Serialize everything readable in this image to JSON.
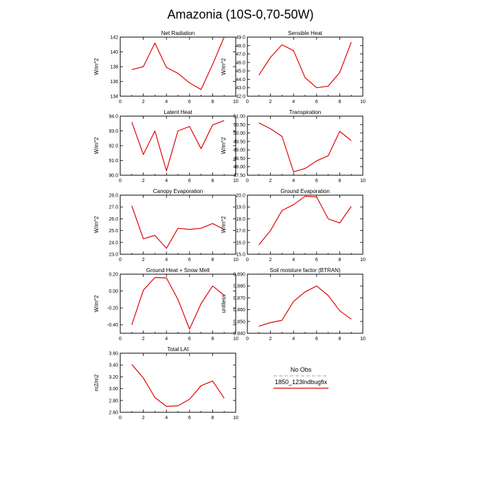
{
  "figure": {
    "title": "Amazonia (10S-0,70-50W)"
  },
  "legend": {
    "entries": [
      {
        "label": "No Obs",
        "color": "#aab0d8",
        "dashed": true
      },
      {
        "label": "1850_123lndbugfix",
        "color": "#e00000",
        "dashed": false
      }
    ]
  },
  "colors": {
    "series": "#e00000",
    "axes": "#000000",
    "background": "#ffffff"
  },
  "chart_data": [
    {
      "type": "line",
      "title": "Net Radiation",
      "ylabel": "W/m^2",
      "xlim": [
        0,
        10
      ],
      "ylim": [
        134,
        142
      ],
      "xticks": [
        "0",
        "2",
        "4",
        "6",
        "8",
        "10"
      ],
      "yticks": [
        "134",
        "136",
        "138",
        "140",
        "142"
      ],
      "series": [
        {
          "x": [
            1,
            2,
            3,
            4,
            5,
            6,
            7,
            8,
            9
          ],
          "values": [
            137.6,
            138.0,
            141.2,
            137.9,
            137.1,
            135.8,
            134.9,
            138.3,
            142.0
          ]
        }
      ]
    },
    {
      "type": "line",
      "title": "Sensible Heat",
      "ylabel": "W/m^2",
      "xlim": [
        0,
        10
      ],
      "ylim": [
        42,
        49
      ],
      "xticks": [
        "0",
        "2",
        "4",
        "6",
        "8",
        "10"
      ],
      "yticks": [
        "42.0",
        "43.0",
        "44.0",
        "45.0",
        "46.0",
        "47.0",
        "48.0",
        "49.0"
      ],
      "series": [
        {
          "x": [
            1,
            2,
            3,
            4,
            5,
            6,
            7,
            8,
            9
          ],
          "values": [
            44.5,
            46.6,
            48.1,
            47.4,
            44.2,
            43.0,
            43.2,
            44.8,
            48.4
          ]
        }
      ]
    },
    {
      "type": "line",
      "title": "Latent Heat",
      "ylabel": "W/m^2",
      "xlim": [
        0,
        10
      ],
      "ylim": [
        90,
        94
      ],
      "xticks": [
        "0",
        "2",
        "4",
        "6",
        "8",
        "10"
      ],
      "yticks": [
        "90.0",
        "91.0",
        "92.0",
        "93.0",
        "94.0"
      ],
      "series": [
        {
          "x": [
            1,
            2,
            3,
            4,
            5,
            6,
            7,
            8,
            9
          ],
          "values": [
            93.6,
            91.4,
            93.0,
            90.3,
            93.0,
            93.3,
            91.8,
            93.4,
            93.7
          ]
        }
      ]
    },
    {
      "type": "line",
      "title": "Transpiration",
      "ylabel": "W/m^2",
      "xlim": [
        0,
        10
      ],
      "ylim": [
        47.5,
        51
      ],
      "xticks": [
        "0",
        "2",
        "4",
        "6",
        "8",
        "10"
      ],
      "yticks": [
        "47.50",
        "48.00",
        "48.50",
        "49.00",
        "49.50",
        "50.00",
        "50.50",
        "51.00"
      ],
      "series": [
        {
          "x": [
            1,
            2,
            3,
            4,
            5,
            6,
            7,
            8,
            9
          ],
          "values": [
            50.6,
            50.25,
            49.8,
            47.7,
            47.9,
            48.35,
            48.65,
            50.1,
            49.55
          ]
        }
      ]
    },
    {
      "type": "line",
      "title": "Canopy Evaporation",
      "ylabel": "W/m^2",
      "xlim": [
        0,
        10
      ],
      "ylim": [
        23,
        28
      ],
      "xticks": [
        "0",
        "2",
        "4",
        "6",
        "8",
        "10"
      ],
      "yticks": [
        "23.0",
        "24.0",
        "25.0",
        "26.0",
        "27.0",
        "28.0"
      ],
      "series": [
        {
          "x": [
            1,
            2,
            3,
            4,
            5,
            6,
            7,
            8,
            9
          ],
          "values": [
            27.1,
            24.3,
            24.6,
            23.5,
            25.2,
            25.1,
            25.2,
            25.6,
            25.1
          ]
        }
      ]
    },
    {
      "type": "line",
      "title": "Ground Evaporation",
      "ylabel": "W/m^2",
      "xlim": [
        0,
        10
      ],
      "ylim": [
        15,
        20
      ],
      "xticks": [
        "0",
        "2",
        "4",
        "6",
        "8",
        "10"
      ],
      "yticks": [
        "15.0",
        "16.0",
        "17.0",
        "18.0",
        "19.0",
        "20.0"
      ],
      "series": [
        {
          "x": [
            1,
            2,
            3,
            4,
            5,
            6,
            7,
            8,
            9
          ],
          "values": [
            15.8,
            17.0,
            18.7,
            19.2,
            19.9,
            19.85,
            18.0,
            17.65,
            19.05
          ]
        }
      ]
    },
    {
      "type": "line",
      "title": "Ground Heat + Snow Melt",
      "ylabel": "W/m^2",
      "xlim": [
        0,
        10
      ],
      "ylim": [
        -0.5,
        0.2
      ],
      "xticks": [
        "0",
        "2",
        "4",
        "6",
        "8",
        "10"
      ],
      "yticks": [
        "-0.40",
        "-0.20",
        "0.00",
        "0.20"
      ],
      "series": [
        {
          "x": [
            1,
            2,
            3,
            4,
            5,
            6,
            7,
            8,
            9
          ],
          "values": [
            -0.4,
            0.01,
            0.16,
            0.155,
            -0.1,
            -0.45,
            -0.15,
            0.06,
            -0.05
          ]
        }
      ]
    },
    {
      "type": "line",
      "title": "Soil moisture factor (BTRAN)",
      "ylabel": "unitless",
      "xlim": [
        0,
        10
      ],
      "ylim": [
        0.84,
        0.89
      ],
      "xticks": [
        "0",
        "2",
        "4",
        "6",
        "8",
        "10"
      ],
      "yticks": [
        "0.840",
        "0.850",
        "0.860",
        "0.870",
        "0.880",
        "0.890"
      ],
      "series": [
        {
          "x": [
            1,
            2,
            3,
            4,
            5,
            6,
            7,
            8,
            9
          ],
          "values": [
            0.846,
            0.849,
            0.851,
            0.867,
            0.875,
            0.88,
            0.872,
            0.859,
            0.852
          ]
        }
      ]
    },
    {
      "type": "line",
      "title": "Total LAI",
      "ylabel": "m2/m2",
      "xlim": [
        0,
        10
      ],
      "ylim": [
        2.6,
        3.6
      ],
      "xticks": [
        "0",
        "2",
        "4",
        "6",
        "8",
        "10"
      ],
      "yticks": [
        "2.60",
        "2.80",
        "3.00",
        "3.20",
        "3.40",
        "3.60"
      ],
      "series": [
        {
          "x": [
            1,
            2,
            3,
            4,
            5,
            6,
            7,
            8,
            9
          ],
          "values": [
            3.41,
            3.18,
            2.85,
            2.7,
            2.71,
            2.82,
            3.05,
            3.13,
            2.84
          ]
        }
      ]
    }
  ]
}
